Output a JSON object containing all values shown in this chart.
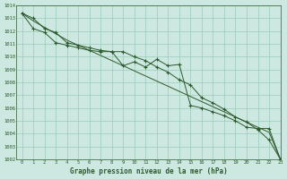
{
  "title": "Graphe pression niveau de la mer (hPa)",
  "bg_color": "#cce8e0",
  "line_color": "#2d5a2d",
  "grid_color": "#99ccbb",
  "xlim": [
    -0.5,
    23
  ],
  "ylim": [
    1002,
    1014
  ],
  "xtick_vals": [
    0,
    1,
    2,
    3,
    4,
    5,
    6,
    7,
    8,
    9,
    10,
    11,
    12,
    13,
    14,
    15,
    16,
    17,
    18,
    19,
    20,
    21,
    22,
    23
  ],
  "ytick_vals": [
    1002,
    1003,
    1004,
    1005,
    1006,
    1007,
    1008,
    1009,
    1010,
    1011,
    1012,
    1013,
    1014
  ],
  "series1_x": [
    0,
    1,
    2,
    3,
    4,
    5,
    6,
    7,
    8,
    9,
    10,
    11,
    12,
    13,
    14,
    15,
    16,
    17,
    18,
    19,
    20,
    21,
    22,
    23
  ],
  "series1_y": [
    1013.4,
    1012.8,
    1012.3,
    1011.8,
    1011.3,
    1010.9,
    1010.5,
    1010.1,
    1009.7,
    1009.3,
    1008.9,
    1008.5,
    1008.1,
    1007.7,
    1007.3,
    1006.9,
    1006.5,
    1006.1,
    1005.7,
    1005.3,
    1004.9,
    1004.5,
    1004.1,
    1002.0
  ],
  "series2_x": [
    0,
    1,
    2,
    3,
    4,
    5,
    6,
    7,
    8,
    9,
    10,
    11,
    12,
    13,
    14,
    15,
    16,
    17,
    18,
    19,
    20,
    21,
    22,
    23
  ],
  "series2_y": [
    1013.4,
    1012.2,
    1011.9,
    1011.1,
    1010.9,
    1010.7,
    1010.5,
    1010.4,
    1010.4,
    1010.4,
    1010.0,
    1009.7,
    1009.2,
    1008.8,
    1008.2,
    1007.8,
    1006.8,
    1006.4,
    1005.9,
    1005.3,
    1004.9,
    1004.3,
    1003.5,
    1002.0
  ],
  "series3_x": [
    0,
    1,
    2,
    3,
    4,
    5,
    6,
    7,
    8,
    9,
    10,
    11,
    12,
    13,
    14,
    15,
    16,
    17,
    18,
    19,
    20,
    21,
    22,
    23
  ],
  "series3_y": [
    1013.4,
    1013.0,
    1012.2,
    1011.9,
    1011.1,
    1010.9,
    1010.7,
    1010.5,
    1010.4,
    1009.3,
    1009.6,
    1009.2,
    1009.8,
    1009.3,
    1009.4,
    1006.2,
    1006.0,
    1005.7,
    1005.4,
    1005.0,
    1004.5,
    1004.4,
    1004.4,
    1002.0
  ]
}
